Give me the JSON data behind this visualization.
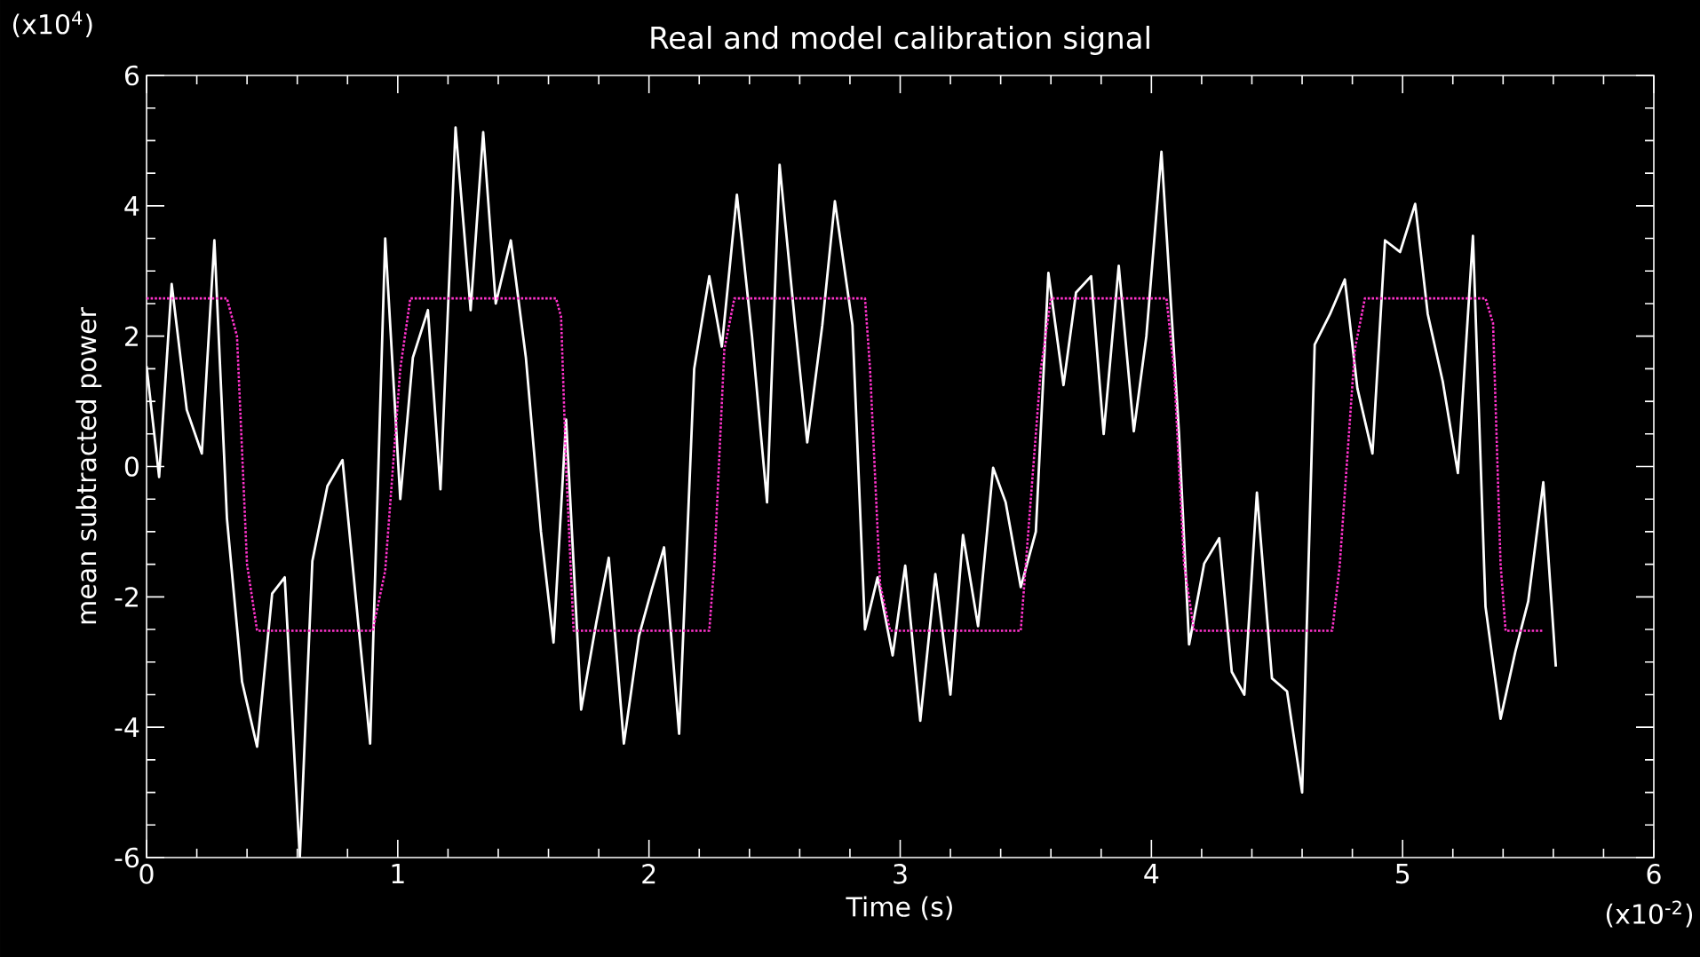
{
  "chart_data": {
    "type": "line",
    "title": "Real and model calibration signal",
    "xlabel": "Time (s)",
    "ylabel": "mean subtracted power",
    "annotations": [
      "(x10$^{4}$)",
      "(x10$^{-2}$)"
    ],
    "xlim": [
      0,
      6
    ],
    "ylim": [
      -6,
      6
    ],
    "xticks": [
      0,
      1,
      2,
      3,
      4,
      5,
      6
    ],
    "yticks": [
      -6,
      -4,
      -2,
      0,
      2,
      4,
      6
    ],
    "grid": false,
    "series": [
      {
        "color": "#ffffff",
        "line_style": "solid",
        "x": [
          0,
          0.05,
          0.1,
          0.16,
          0.22,
          0.27,
          0.32,
          0.38,
          0.44,
          0.5,
          0.55,
          0.61,
          0.66,
          0.72,
          0.78,
          0.84,
          0.89,
          0.95,
          1.01,
          1.06,
          1.12,
          1.17,
          1.23,
          1.29,
          1.34,
          1.39,
          1.45,
          1.51,
          1.57,
          1.62,
          1.67,
          1.73,
          1.79,
          1.84,
          1.9,
          1.96,
          2.01,
          2.06,
          2.12,
          2.18,
          2.24,
          2.29,
          2.35,
          2.41,
          2.47,
          2.52,
          2.58,
          2.63,
          2.69,
          2.74,
          2.81,
          2.86,
          2.91,
          2.97,
          3.02,
          3.08,
          3.14,
          3.2,
          3.25,
          3.31,
          3.37,
          3.42,
          3.48,
          3.54,
          3.59,
          3.65,
          3.7,
          3.76,
          3.81,
          3.87,
          3.93,
          3.98,
          4.04,
          4.11,
          4.15,
          4.21,
          4.27,
          4.32,
          4.37,
          4.42,
          4.48,
          4.54,
          4.6,
          4.65,
          4.71,
          4.77,
          4.82,
          4.88,
          4.93,
          4.99,
          5.05,
          5.1,
          5.16,
          5.22,
          5.28,
          5.33,
          5.39,
          5.45,
          5.5,
          5.56,
          5.61
        ],
        "values": [
          1.54,
          -0.16,
          2.8,
          0.87,
          0.2,
          3.47,
          -0.8,
          -3.3,
          -4.3,
          -1.95,
          -1.7,
          -6.0,
          -1.45,
          -0.3,
          0.1,
          -2.3,
          -4.25,
          3.5,
          -0.5,
          1.67,
          2.4,
          -0.35,
          5.2,
          2.4,
          5.13,
          2.5,
          3.47,
          1.67,
          -1.0,
          -2.7,
          0.72,
          -3.73,
          -2.4,
          -1.4,
          -4.25,
          -2.6,
          -1.9,
          -1.24,
          -4.1,
          1.5,
          2.92,
          1.84,
          4.17,
          2.0,
          -0.55,
          4.63,
          2.25,
          0.37,
          2.17,
          4.07,
          2.17,
          -2.5,
          -1.7,
          -2.9,
          -1.52,
          -3.9,
          -1.65,
          -3.5,
          -1.05,
          -2.45,
          -0.02,
          -0.55,
          -1.85,
          -1.0,
          2.97,
          1.25,
          2.67,
          2.92,
          0.5,
          3.08,
          0.54,
          2.0,
          4.83,
          0.5,
          -2.73,
          -1.49,
          -1.1,
          -3.15,
          -3.5,
          -0.4,
          -3.25,
          -3.45,
          -5.0,
          1.87,
          2.33,
          2.87,
          1.2,
          0.2,
          3.47,
          3.29,
          4.03,
          2.34,
          1.3,
          -0.1,
          3.54,
          -2.15,
          -3.87,
          -2.82,
          -2.07,
          -0.24,
          -3.07
        ]
      },
      {
        "color": "#ff33cc",
        "line_style": "dotted",
        "x": [
          0,
          0.32,
          0.36,
          0.4,
          0.44,
          0.9,
          0.95,
          1.01,
          1.05,
          1.63,
          1.65,
          1.67,
          1.7,
          2.24,
          2.26,
          2.3,
          2.34,
          2.86,
          2.88,
          2.92,
          2.96,
          3.48,
          3.5,
          3.56,
          3.6,
          4.06,
          4.09,
          4.13,
          4.17,
          4.72,
          4.75,
          4.81,
          4.85,
          5.33,
          5.36,
          5.39,
          5.41,
          5.56
        ],
        "values": [
          2.58,
          2.58,
          2.0,
          -1.5,
          -2.52,
          -2.52,
          -1.6,
          1.5,
          2.58,
          2.58,
          2.3,
          0,
          -2.52,
          -2.52,
          -1.5,
          1.8,
          2.58,
          2.58,
          1.5,
          -1.8,
          -2.52,
          -2.52,
          -1.5,
          1.5,
          2.58,
          2.58,
          1.5,
          -1.5,
          -2.52,
          -2.52,
          -1.5,
          1.8,
          2.58,
          2.58,
          2.2,
          -1.5,
          -2.52,
          -2.52
        ]
      }
    ]
  }
}
